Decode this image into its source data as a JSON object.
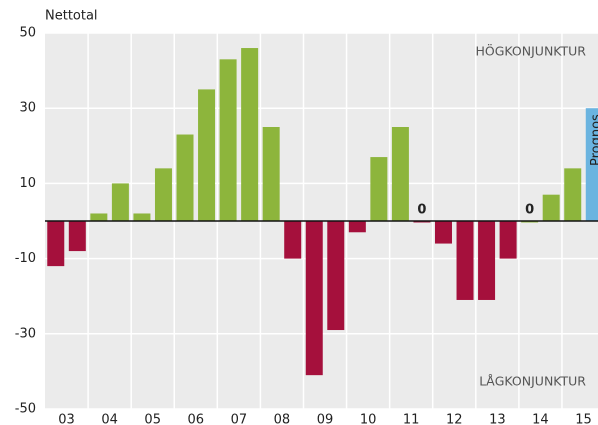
{
  "chart_data": {
    "type": "bar",
    "y_axis_label": "Nettotal",
    "years": [
      "03",
      "04",
      "05",
      "06",
      "07",
      "08",
      "09",
      "10",
      "11",
      "12",
      "13",
      "14",
      "15"
    ],
    "values": [
      -12,
      -8,
      2,
      10,
      2,
      14,
      23,
      35,
      43,
      46,
      25,
      -10,
      -41,
      -29,
      -3,
      17,
      25,
      0,
      -6,
      -21,
      -21,
      -10,
      0,
      7,
      14,
      30
    ],
    "value_labels": [
      null,
      null,
      null,
      null,
      null,
      null,
      null,
      null,
      null,
      null,
      null,
      null,
      null,
      null,
      null,
      null,
      null,
      "0",
      null,
      null,
      null,
      null,
      "0",
      null,
      null,
      null
    ],
    "colors": [
      "#a5103c",
      "#a5103c",
      "#8db53c",
      "#8db53c",
      "#8db53c",
      "#8db53c",
      "#8db53c",
      "#8db53c",
      "#8db53c",
      "#8db53c",
      "#8db53c",
      "#a5103c",
      "#a5103c",
      "#a5103c",
      "#a5103c",
      "#8db53c",
      "#8db53c",
      "#a5103c",
      "#a5103c",
      "#a5103c",
      "#a5103c",
      "#a5103c",
      "#8db53c",
      "#8db53c",
      "#8db53c",
      "#6bb4e0"
    ],
    "forecast_label": "Prognos",
    "annotations": [
      "HÖGKONJUNKTUR",
      "LÅGKONJUNKTUR"
    ],
    "ylim": [
      -50,
      50
    ],
    "yticks": [
      -50,
      -30,
      -10,
      10,
      30,
      50
    ],
    "grid": true
  }
}
